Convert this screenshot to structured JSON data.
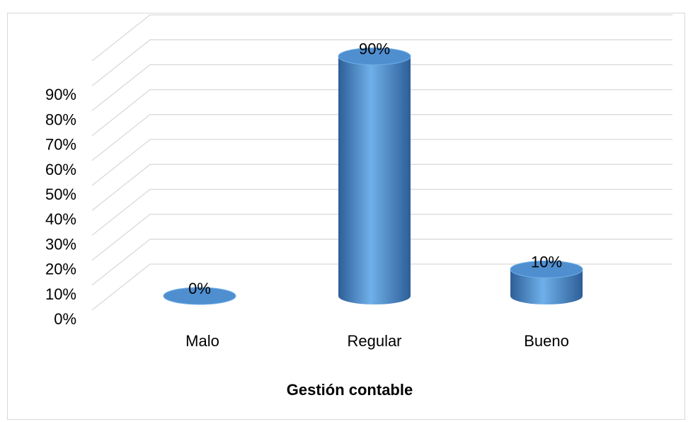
{
  "chart_data": {
    "type": "bar",
    "style": "3d-cylinder",
    "title": "",
    "xlabel": "Gestión contable",
    "ylabel": "",
    "categories": [
      "Malo",
      "Regular",
      "Bueno"
    ],
    "values": [
      0,
      90,
      10
    ],
    "value_labels": [
      "0%",
      "90%",
      "10%"
    ],
    "y_ticks": [
      "0%",
      "10%",
      "20%",
      "30%",
      "40%",
      "50%",
      "60%",
      "70%",
      "80%",
      "90%"
    ],
    "ylim": [
      0,
      100
    ],
    "grid": true,
    "legend": "none",
    "bar_color": "#4f8fd0",
    "bar_highlight": "#6fb0ea",
    "bar_shadow": "#2e5e97"
  }
}
